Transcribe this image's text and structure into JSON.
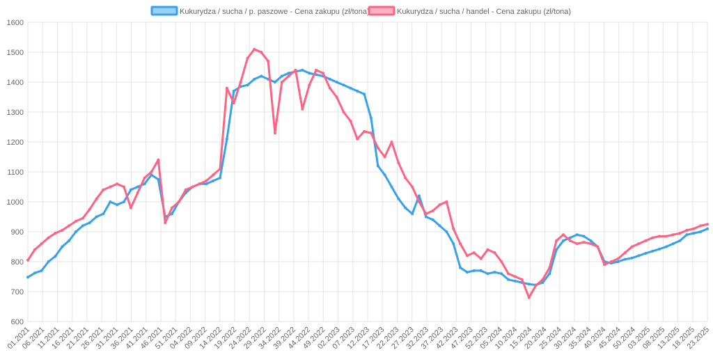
{
  "chart_data": {
    "type": "line",
    "title": "",
    "xlabel": "",
    "ylabel": "",
    "ylim": [
      600,
      1600
    ],
    "yticks": [
      600,
      700,
      800,
      900,
      1000,
      1100,
      1200,
      1300,
      1400,
      1500,
      1600
    ],
    "grid": true,
    "legend_position": "top",
    "x_tick_labels": [
      "01.2021",
      "06.2021",
      "11.2021",
      "16.2021",
      "21.2021",
      "26.2021",
      "31.2021",
      "36.2021",
      "41.2021",
      "46.2021",
      "51.2021",
      "04.2022",
      "09.2022",
      "14.2022",
      "19.2022",
      "24.2022",
      "29.2022",
      "34.2022",
      "39.2022",
      "44.2022",
      "49.2022",
      "02.2023",
      "07.2023",
      "12.2023",
      "17.2023",
      "22.2023",
      "27.2023",
      "32.2023",
      "37.2023",
      "42.2023",
      "47.2023",
      "52.2023",
      "05.2024",
      "10.2024",
      "15.2024",
      "20.2024",
      "25.2024",
      "30.2024",
      "35.2024",
      "40.2024",
      "45.2024",
      "50.2024",
      "03.2025",
      "08.2025",
      "13.2025",
      "18.2025",
      "23.2025"
    ],
    "series": [
      {
        "name": "Kukurydza / sucha / p. paszowe - Cena zakupu (zł/tona)",
        "color": "#36a2eb",
        "fill": "#9ad0f5",
        "points": [
          [
            0,
            748
          ],
          [
            1,
            762
          ],
          [
            2,
            770
          ],
          [
            3,
            800
          ],
          [
            4,
            818
          ],
          [
            5,
            850
          ],
          [
            6,
            870
          ],
          [
            7,
            900
          ],
          [
            8,
            920
          ],
          [
            9,
            930
          ],
          [
            10,
            950
          ],
          [
            11,
            960
          ],
          [
            12,
            1000
          ],
          [
            13,
            990
          ],
          [
            14,
            1000
          ],
          [
            15,
            1040
          ],
          [
            16,
            1050
          ],
          [
            17,
            1060
          ],
          [
            18,
            1090
          ],
          [
            19,
            1075
          ],
          [
            20,
            950
          ],
          [
            21,
            960
          ],
          [
            22,
            1000
          ],
          [
            23,
            1030
          ],
          [
            24,
            1050
          ],
          [
            25,
            1060
          ],
          [
            26,
            1060
          ],
          [
            27,
            1070
          ],
          [
            28,
            1080
          ],
          [
            29,
            1210
          ],
          [
            30,
            1370
          ],
          [
            31,
            1385
          ],
          [
            32,
            1390
          ],
          [
            33,
            1410
          ],
          [
            34,
            1420
          ],
          [
            35,
            1410
          ],
          [
            36,
            1400
          ],
          [
            37,
            1420
          ],
          [
            38,
            1430
          ],
          [
            39,
            1435
          ],
          [
            40,
            1440
          ],
          [
            41,
            1430
          ],
          [
            42,
            1425
          ],
          [
            43,
            1420
          ],
          [
            44,
            1410
          ],
          [
            45,
            1400
          ],
          [
            46,
            1390
          ],
          [
            47,
            1380
          ],
          [
            48,
            1370
          ],
          [
            49,
            1360
          ],
          [
            50,
            1280
          ],
          [
            51,
            1120
          ],
          [
            52,
            1090
          ],
          [
            53,
            1050
          ],
          [
            54,
            1010
          ],
          [
            55,
            980
          ],
          [
            56,
            960
          ],
          [
            57,
            1020
          ],
          [
            58,
            950
          ],
          [
            59,
            940
          ],
          [
            60,
            920
          ],
          [
            61,
            900
          ],
          [
            62,
            860
          ],
          [
            63,
            780
          ],
          [
            64,
            765
          ],
          [
            65,
            770
          ],
          [
            66,
            770
          ],
          [
            67,
            760
          ],
          [
            68,
            765
          ],
          [
            69,
            760
          ],
          [
            70,
            740
          ],
          [
            71,
            735
          ],
          [
            72,
            730
          ],
          [
            73,
            725
          ],
          [
            74,
            722
          ],
          [
            75,
            730
          ],
          [
            76,
            760
          ],
          [
            77,
            840
          ],
          [
            78,
            870
          ],
          [
            79,
            880
          ],
          [
            80,
            890
          ],
          [
            81,
            885
          ],
          [
            82,
            870
          ],
          [
            83,
            850
          ],
          [
            84,
            800
          ],
          [
            85,
            795
          ],
          [
            86,
            800
          ],
          [
            87,
            808
          ],
          [
            88,
            812
          ],
          [
            89,
            820
          ],
          [
            90,
            828
          ],
          [
            91,
            835
          ],
          [
            92,
            842
          ],
          [
            93,
            850
          ],
          [
            94,
            860
          ],
          [
            95,
            870
          ],
          [
            96,
            890
          ],
          [
            97,
            895
          ],
          [
            98,
            900
          ],
          [
            99,
            910
          ]
        ]
      },
      {
        "name": "Kukurydza / sucha / handel - Cena zakupu (zł/tona)",
        "color": "#ff6384",
        "fill": "#ffb1c1",
        "points": [
          [
            0,
            805
          ],
          [
            1,
            840
          ],
          [
            2,
            860
          ],
          [
            3,
            880
          ],
          [
            4,
            895
          ],
          [
            5,
            905
          ],
          [
            6,
            920
          ],
          [
            7,
            935
          ],
          [
            8,
            945
          ],
          [
            9,
            975
          ],
          [
            10,
            1010
          ],
          [
            11,
            1040
          ],
          [
            12,
            1050
          ],
          [
            13,
            1060
          ],
          [
            14,
            1050
          ],
          [
            15,
            980
          ],
          [
            16,
            1030
          ],
          [
            17,
            1080
          ],
          [
            18,
            1100
          ],
          [
            19,
            1140
          ],
          [
            20,
            930
          ],
          [
            21,
            980
          ],
          [
            22,
            1000
          ],
          [
            23,
            1040
          ],
          [
            24,
            1050
          ],
          [
            25,
            1060
          ],
          [
            26,
            1070
          ],
          [
            27,
            1090
          ],
          [
            28,
            1110
          ],
          [
            29,
            1380
          ],
          [
            30,
            1330
          ],
          [
            31,
            1400
          ],
          [
            32,
            1480
          ],
          [
            33,
            1510
          ],
          [
            34,
            1500
          ],
          [
            35,
            1470
          ],
          [
            36,
            1230
          ],
          [
            37,
            1400
          ],
          [
            38,
            1420
          ],
          [
            39,
            1440
          ],
          [
            40,
            1310
          ],
          [
            41,
            1390
          ],
          [
            42,
            1440
          ],
          [
            43,
            1430
          ],
          [
            44,
            1380
          ],
          [
            45,
            1350
          ],
          [
            46,
            1300
          ],
          [
            47,
            1270
          ],
          [
            48,
            1210
          ],
          [
            49,
            1235
          ],
          [
            50,
            1230
          ],
          [
            51,
            1180
          ],
          [
            52,
            1150
          ],
          [
            53,
            1200
          ],
          [
            54,
            1130
          ],
          [
            55,
            1080
          ],
          [
            56,
            1050
          ],
          [
            57,
            1000
          ],
          [
            58,
            960
          ],
          [
            59,
            970
          ],
          [
            60,
            990
          ],
          [
            61,
            1000
          ],
          [
            62,
            910
          ],
          [
            63,
            860
          ],
          [
            64,
            820
          ],
          [
            65,
            830
          ],
          [
            66,
            810
          ],
          [
            67,
            840
          ],
          [
            68,
            830
          ],
          [
            69,
            800
          ],
          [
            70,
            760
          ],
          [
            71,
            750
          ],
          [
            72,
            740
          ],
          [
            73,
            680
          ],
          [
            74,
            720
          ],
          [
            75,
            740
          ],
          [
            76,
            780
          ],
          [
            77,
            870
          ],
          [
            78,
            890
          ],
          [
            79,
            870
          ],
          [
            80,
            860
          ],
          [
            81,
            865
          ],
          [
            82,
            860
          ],
          [
            83,
            850
          ],
          [
            84,
            790
          ],
          [
            85,
            800
          ],
          [
            86,
            810
          ],
          [
            87,
            830
          ],
          [
            88,
            850
          ],
          [
            89,
            860
          ],
          [
            90,
            870
          ],
          [
            91,
            880
          ],
          [
            92,
            885
          ],
          [
            93,
            885
          ],
          [
            94,
            890
          ],
          [
            95,
            895
          ],
          [
            96,
            905
          ],
          [
            97,
            910
          ],
          [
            98,
            920
          ],
          [
            99,
            925
          ]
        ]
      }
    ]
  }
}
